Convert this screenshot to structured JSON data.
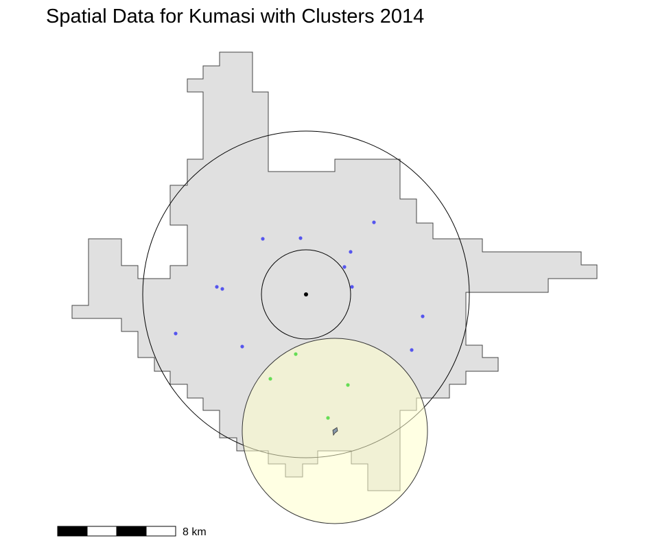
{
  "title": "Spatial Data for Kumasi with Clusters 2014",
  "scalebar": {
    "label": "8 km"
  },
  "colors": {
    "region_fill": "#e0e0e0",
    "region_stroke": "#444444",
    "cluster_blue": "#5555ee",
    "cluster_green": "#66dd55",
    "buffer_fill": "#ffffcc",
    "center_point": "#000000"
  },
  "legend_items": [
    "boundary",
    "inner-buffer",
    "outer-buffer",
    "cluster-buffer-yellow"
  ]
}
